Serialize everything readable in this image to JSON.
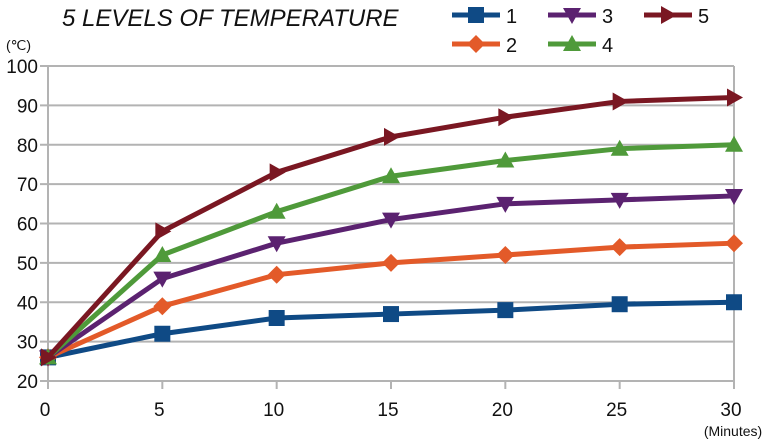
{
  "chart_data": {
    "type": "line",
    "title": "5 LEVELS OF TEMPERATURE",
    "xlabel": "(Minutes)",
    "ylabel": "(℃)",
    "x": [
      0,
      5,
      10,
      15,
      20,
      25,
      30
    ],
    "xticks": [
      "0",
      "5",
      "10",
      "15",
      "20",
      "25",
      "30"
    ],
    "yticks": [
      "20",
      "30",
      "40",
      "50",
      "60",
      "70",
      "80",
      "90",
      "100"
    ],
    "xlim": [
      0,
      30
    ],
    "ylim": [
      20,
      100
    ],
    "grid": true,
    "legend_position": "top-right",
    "series": [
      {
        "name": "1",
        "color": "#0f4a85",
        "marker": "square",
        "values": [
          26,
          32,
          36,
          37,
          38,
          39.5,
          40
        ]
      },
      {
        "name": "2",
        "color": "#e35a29",
        "marker": "diamond",
        "values": [
          26,
          39,
          47,
          50,
          52,
          54,
          55
        ]
      },
      {
        "name": "3",
        "color": "#5b2270",
        "marker": "triangle-down",
        "values": [
          26,
          46,
          55,
          61,
          65,
          66,
          67
        ]
      },
      {
        "name": "4",
        "color": "#4f9a3a",
        "marker": "triangle-up",
        "values": [
          26,
          52,
          63,
          72,
          76,
          79,
          80
        ]
      },
      {
        "name": "5",
        "color": "#7a1722",
        "marker": "triangle-right",
        "values": [
          26,
          58,
          73,
          82,
          87,
          91,
          92
        ]
      }
    ]
  }
}
